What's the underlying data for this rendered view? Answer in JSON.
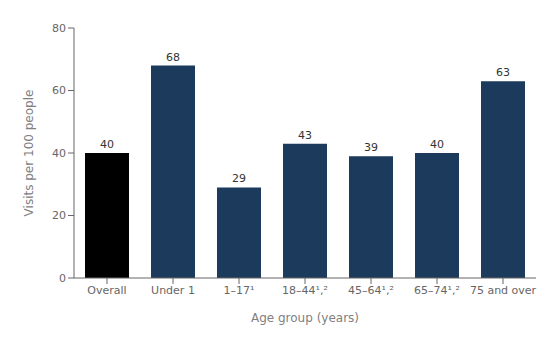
{
  "chart_data": {
    "type": "bar",
    "categories": [
      "Overall",
      "Under 1",
      "1–17¹",
      "18–44¹,²",
      "45–64¹,²",
      "65–74¹,²",
      "75 and over"
    ],
    "values": [
      40,
      68,
      29,
      43,
      39,
      40,
      63
    ],
    "colors": [
      "#000000",
      "#1b3a5c",
      "#1b3a5c",
      "#1b3a5c",
      "#1b3a5c",
      "#1b3a5c",
      "#1b3a5c"
    ],
    "xlabel": "Age group (years)",
    "ylabel": "Visits per 100 people",
    "ylim": [
      0,
      80
    ],
    "yticks": [
      0,
      20,
      40,
      60,
      80
    ],
    "data_labels": true,
    "grid": false
  }
}
